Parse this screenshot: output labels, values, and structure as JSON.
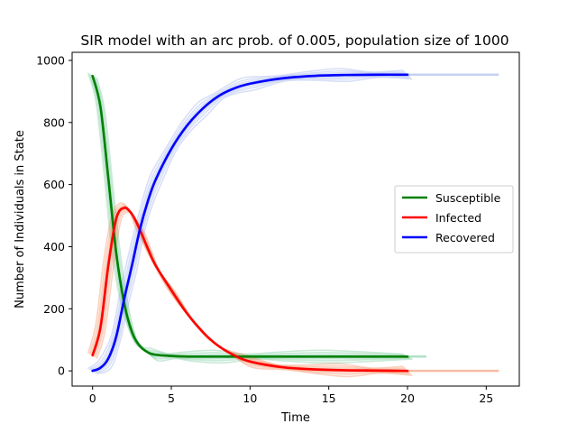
{
  "chart_data": {
    "type": "line",
    "title": "SIR model with an arc prob. of 0.005, population size of 1000",
    "xlabel": "Time",
    "ylabel": "Number of Individuals in State",
    "xlim": [
      -1.3,
      27.1
    ],
    "ylim": [
      -49,
      1026
    ],
    "xticks": [
      0,
      5,
      10,
      15,
      20,
      25
    ],
    "yticks": [
      0,
      200,
      400,
      600,
      800,
      1000
    ],
    "grid": false,
    "legend_position": "center-right",
    "series": [
      {
        "name": "Susceptible",
        "color": "#008000",
        "band_color": "#66c28f",
        "x": [
          0,
          0.5,
          1,
          1.5,
          2,
          2.5,
          3,
          3.5,
          4,
          5,
          6,
          8,
          10,
          12,
          15,
          20
        ],
        "values": [
          950,
          850,
          620,
          380,
          220,
          125,
          80,
          60,
          52,
          48,
          46,
          46,
          46,
          46,
          46,
          46
        ],
        "end_x": 20,
        "band_end_x": 21.2
      },
      {
        "name": "Infected",
        "color": "#ff0000",
        "band_color": "#f07a4a",
        "x": [
          0,
          0.5,
          1,
          1.5,
          2,
          2.5,
          3,
          3.5,
          4,
          5,
          6,
          7,
          8,
          9,
          10,
          12,
          14,
          16,
          18,
          20
        ],
        "values": [
          50,
          140,
          340,
          490,
          525,
          505,
          455,
          395,
          340,
          260,
          185,
          125,
          80,
          50,
          30,
          12,
          5,
          2,
          1,
          0
        ],
        "end_x": 20,
        "band_end_x": 25.8
      },
      {
        "name": "Recovered",
        "color": "#0000ff",
        "band_color": "#8fa3e8",
        "x": [
          0,
          0.5,
          1,
          1.5,
          2,
          2.5,
          3,
          3.5,
          4,
          5,
          6,
          7,
          8,
          9,
          10,
          12,
          14,
          16,
          18,
          20
        ],
        "values": [
          0,
          10,
          40,
          110,
          230,
          340,
          455,
          545,
          615,
          715,
          790,
          845,
          885,
          910,
          925,
          942,
          950,
          953,
          954,
          954
        ],
        "end_x": 20,
        "band_end_x": 25.8
      }
    ]
  }
}
